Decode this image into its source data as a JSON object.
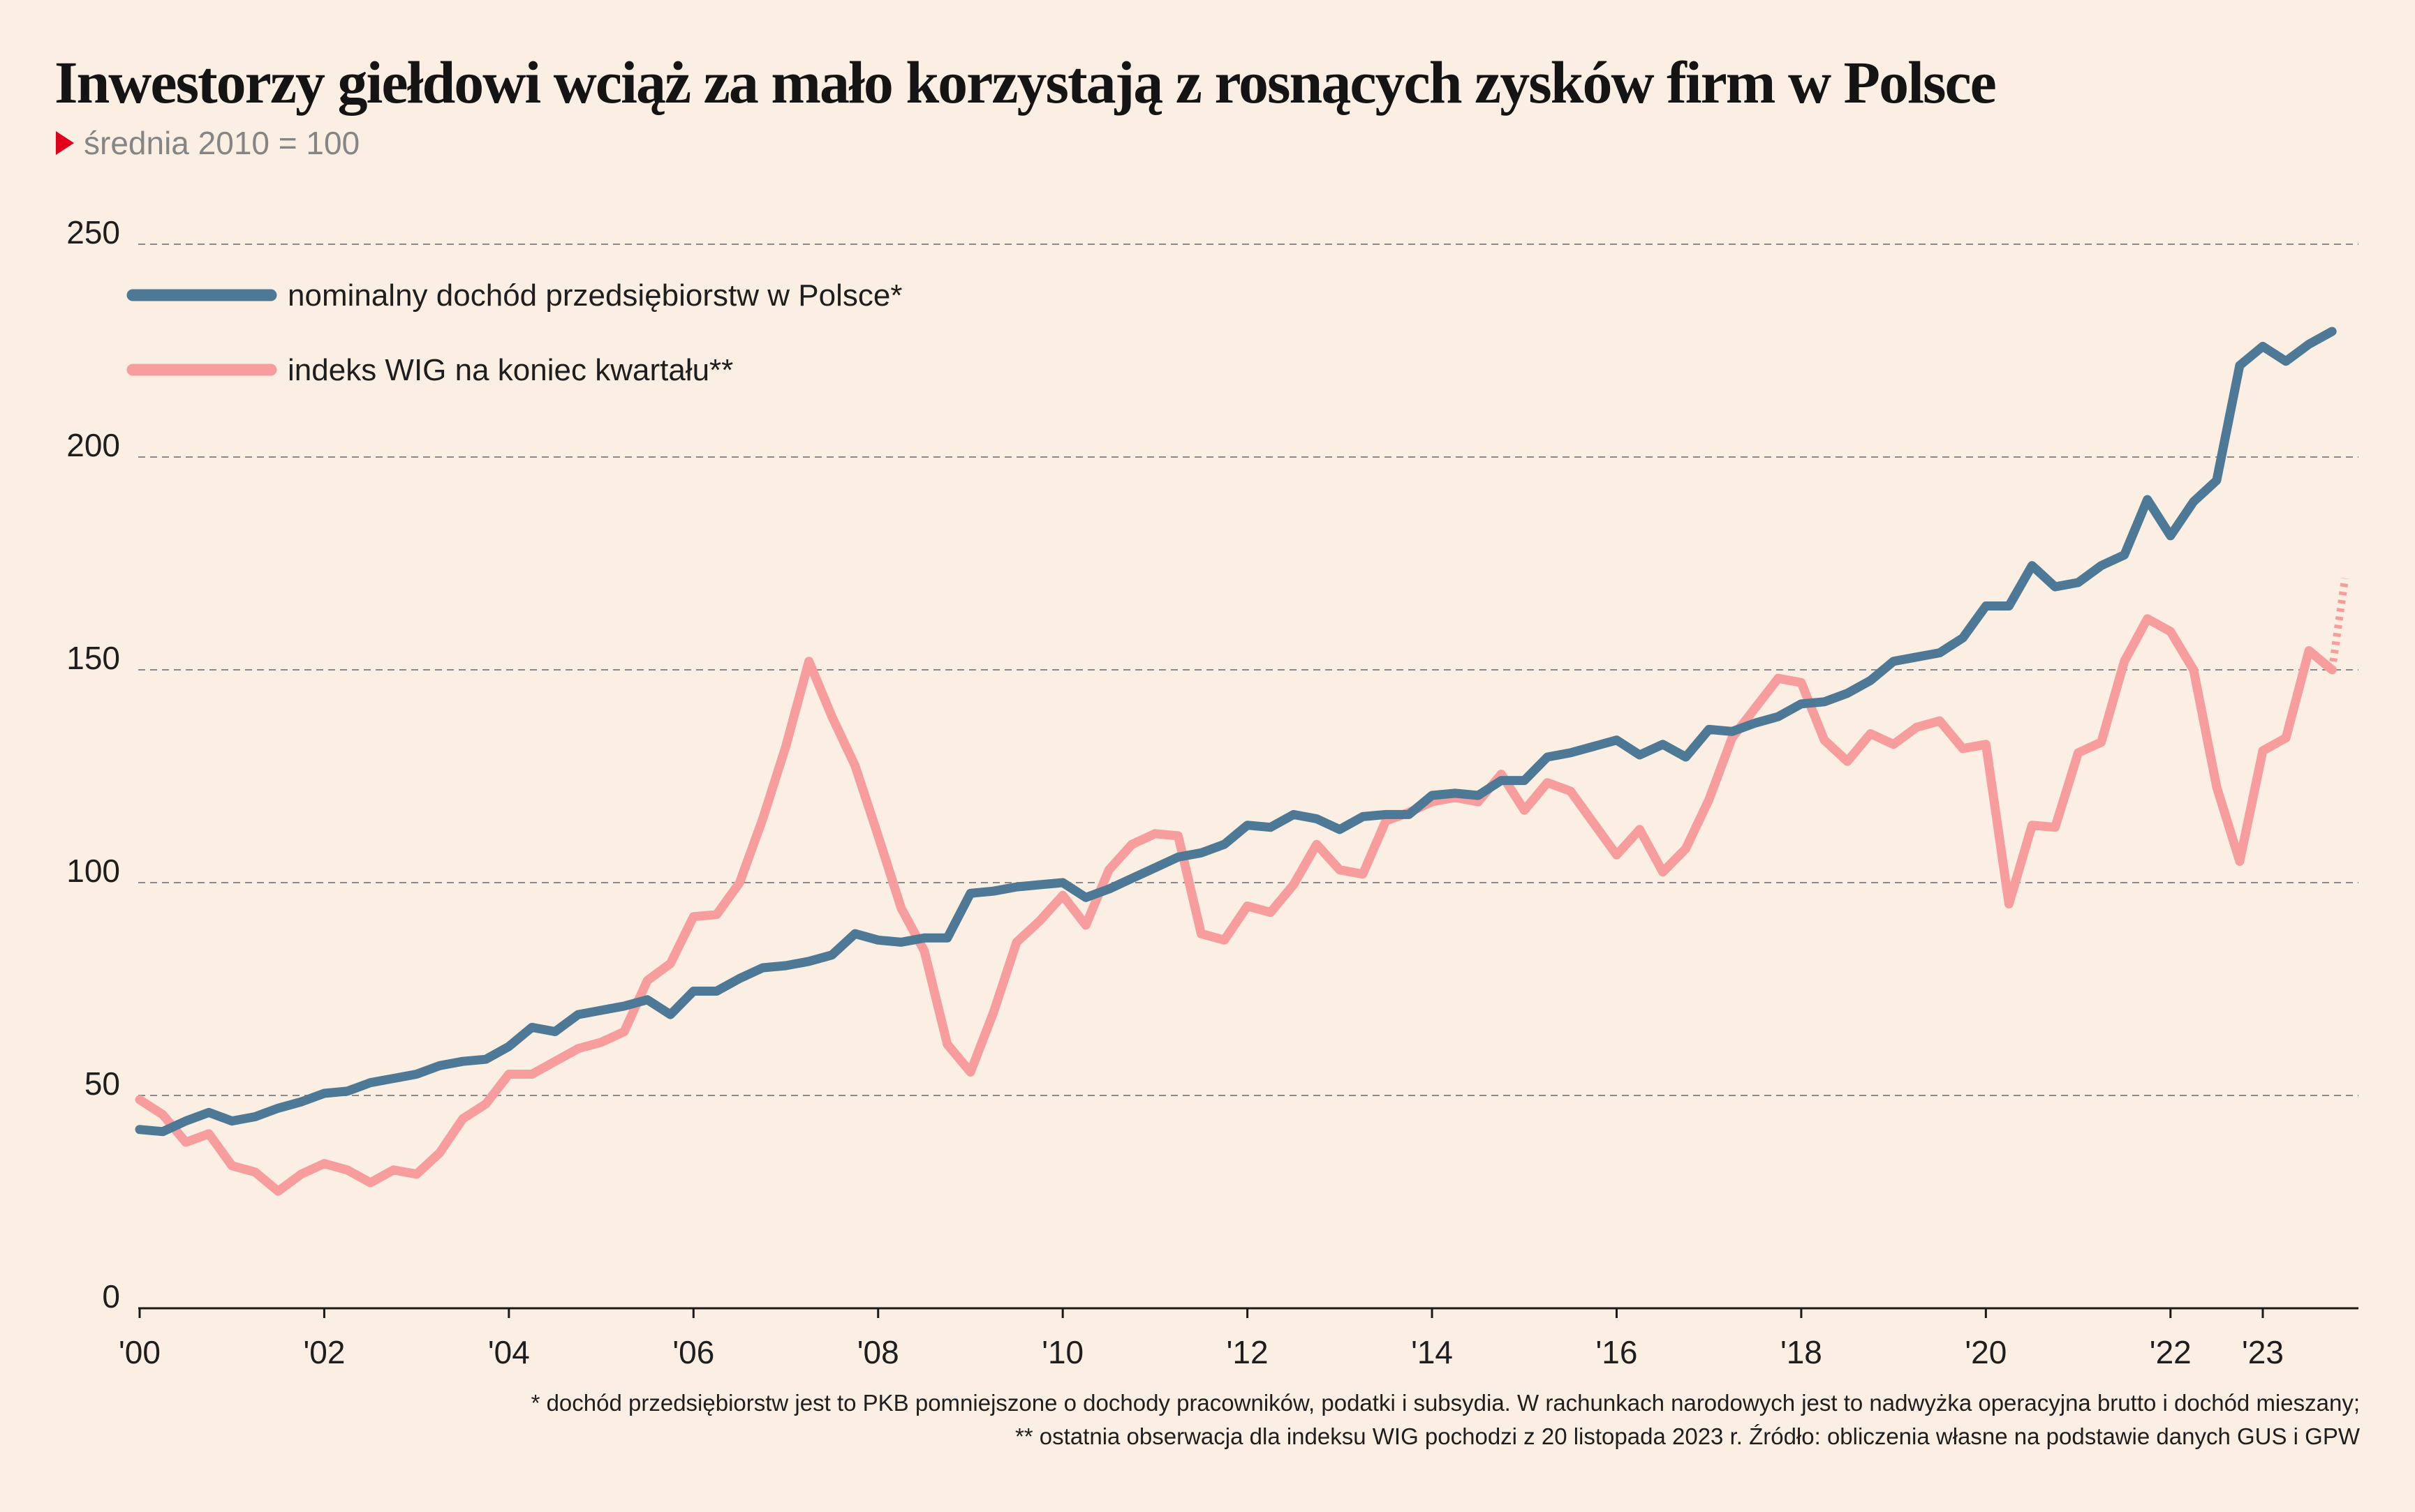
{
  "title": "Inwestorzy giełdowi wciąż za mało korzystają z rosnących zysków firm w Polsce",
  "subtitle": "średnia 2010 = 100",
  "footnotes": [
    "* dochód przedsiębiorstw jest to PKB pomniejszone o dochody pracowników, podatki i subsydia. W rachunkach narodowych jest to nadwyżka operacyjna brutto i dochód mieszany;",
    "** ostatnia obserwacja dla indeksu WIG pochodzi z 20 listopada 2023 r. Źródło: obliczenia własne na podstawie danych GUS i GPW"
  ],
  "colors": {
    "background": "#fbeee2",
    "series_income": "#4e7996",
    "series_wig": "#f79d9d",
    "marker": "#e0001b",
    "grid": "#8a8a8a"
  },
  "chart_data": {
    "type": "line",
    "x_axis_label_years": [
      "'00",
      "'02",
      "'04",
      "'06",
      "'08",
      "'10",
      "'12",
      "'14",
      "'16",
      "'18",
      "'20",
      "'22",
      "'23"
    ],
    "x_range": [
      2000.0,
      2023.9
    ],
    "ylim": [
      0,
      250
    ],
    "yticks": [
      0,
      50,
      100,
      150,
      200,
      250
    ],
    "grid": "horizontal dashed",
    "legend_placement": "top-left",
    "x": [
      2000.0,
      2000.25,
      2000.5,
      2000.75,
      2001.0,
      2001.25,
      2001.5,
      2001.75,
      2002.0,
      2002.25,
      2002.5,
      2002.75,
      2003.0,
      2003.25,
      2003.5,
      2003.75,
      2004.0,
      2004.25,
      2004.5,
      2004.75,
      2005.0,
      2005.25,
      2005.5,
      2005.75,
      2006.0,
      2006.25,
      2006.5,
      2006.75,
      2007.0,
      2007.25,
      2007.5,
      2007.75,
      2008.0,
      2008.25,
      2008.5,
      2008.75,
      2009.0,
      2009.25,
      2009.5,
      2009.75,
      2010.0,
      2010.25,
      2010.5,
      2010.75,
      2011.0,
      2011.25,
      2011.5,
      2011.75,
      2012.0,
      2012.25,
      2012.5,
      2012.75,
      2013.0,
      2013.25,
      2013.5,
      2013.75,
      2014.0,
      2014.25,
      2014.5,
      2014.75,
      2015.0,
      2015.25,
      2015.5,
      2015.75,
      2016.0,
      2016.25,
      2016.5,
      2016.75,
      2017.0,
      2017.25,
      2017.5,
      2017.75,
      2018.0,
      2018.25,
      2018.5,
      2018.75,
      2019.0,
      2019.25,
      2019.5,
      2019.75,
      2020.0,
      2020.25,
      2020.5,
      2020.75,
      2021.0,
      2021.25,
      2021.5,
      2021.75,
      2022.0,
      2022.25,
      2022.5,
      2022.75,
      2023.0,
      2023.25,
      2023.5,
      2023.75
    ],
    "series": [
      {
        "name": "nominalny dochód przedsiębiorstw w Polsce*",
        "color": "#4e7996",
        "values": [
          42,
          41.5,
          44,
          46,
          44,
          45,
          47,
          48.5,
          50.5,
          51,
          53,
          54,
          55,
          57,
          58,
          58.5,
          61.5,
          66,
          65,
          69,
          70,
          71,
          72.5,
          69,
          74.5,
          74.5,
          77.5,
          80,
          80.5,
          81.5,
          83,
          88,
          86.5,
          86,
          87,
          87,
          97.5,
          98,
          99,
          99.5,
          100,
          96.5,
          98.5,
          101,
          103.5,
          106,
          107,
          109,
          113.5,
          113,
          116,
          115,
          112.5,
          115.5,
          116,
          116,
          120.5,
          121,
          120.5,
          124,
          124,
          129.5,
          130.5,
          132,
          133.5,
          130,
          132.5,
          129.5,
          136,
          135.5,
          137.5,
          139,
          142,
          142.5,
          144.5,
          147.5,
          152,
          153,
          154,
          157.5,
          165,
          165,
          174.5,
          169.5,
          170.5,
          174.5,
          177,
          190,
          181.5,
          189.5,
          194.5,
          221.5,
          226,
          222.5,
          226.5,
          229.5
        ]
      },
      {
        "name": "indeks WIG na koniec kwartału**",
        "color": "#f79d9d",
        "values": [
          49,
          45.5,
          39,
          41,
          33.5,
          32,
          27.5,
          31.5,
          34,
          32.5,
          29.5,
          32.5,
          31.5,
          36.5,
          44.5,
          48,
          55,
          55,
          58,
          61,
          62.5,
          65,
          77,
          81,
          92,
          92.5,
          100,
          115,
          132,
          152,
          139,
          127.5,
          111,
          94,
          84,
          62,
          55.5,
          69.5,
          86,
          91,
          97,
          90,
          103,
          109,
          111.5,
          111,
          88,
          86.5,
          94.5,
          93,
          99.5,
          109,
          103,
          102,
          114.5,
          116.5,
          119,
          120,
          119,
          125.5,
          117,
          123.5,
          121.5,
          114,
          106.5,
          112.5,
          102.5,
          108,
          119.5,
          134,
          141,
          148,
          147,
          133.5,
          128.5,
          135,
          132.5,
          136.5,
          138,
          131.5,
          132.5,
          95,
          113.5,
          113,
          130.5,
          133,
          152,
          162,
          159,
          150,
          122.5,
          105,
          131,
          134,
          154.5,
          150
        ],
        "last_point": {
          "x": 2023.89,
          "value": 171.5,
          "style": "dotted"
        }
      }
    ]
  }
}
